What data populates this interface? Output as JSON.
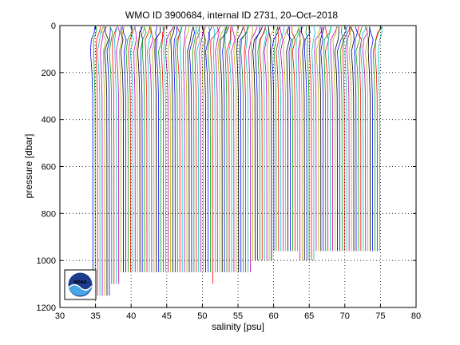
{
  "chart_data": {
    "type": "line",
    "title": "WMO ID 3900684, internal ID 2731, 20–Oct–2018",
    "xlabel": "salinity [psu]",
    "ylabel": "pressure [dbar]",
    "xlim": [
      30,
      80
    ],
    "ylim": [
      0,
      1200
    ],
    "y_reversed": true,
    "grid": true,
    "x_ticks": [
      "30",
      "35",
      "40",
      "45",
      "50",
      "55",
      "60",
      "65",
      "70",
      "75",
      "80"
    ],
    "y_ticks": [
      "0",
      "200",
      "400",
      "600",
      "800",
      "1000",
      "1200"
    ],
    "profiles": {
      "description_visible": "many offset salinity profiles (waterfall)",
      "offset_start_psu": 34.6,
      "offset_end_psu": 75.0,
      "offset_step_psu": 0.33,
      "surface_pressure_dbar": 5,
      "typical_bottom_dbar": [
        1150,
        1150,
        1150,
        1150,
        1150,
        1150,
        1150,
        1150,
        1100,
        1100,
        1100,
        1100,
        1050,
        1050,
        1050,
        1050,
        1050,
        1050,
        1050,
        1050,
        1050,
        1050,
        1050,
        1050,
        1050,
        1050,
        1050,
        1050,
        1050,
        1050,
        1050,
        1050,
        1050,
        1050,
        1050,
        1050,
        1050,
        1050,
        1050,
        1050,
        1050,
        1050,
        1050,
        1050,
        1050,
        1050,
        1050,
        1050,
        1050,
        1050,
        1050,
        1100,
        1050,
        1050,
        1050,
        1050,
        1050,
        1050,
        1050,
        1050,
        1050,
        1050,
        1050,
        1050,
        1050,
        1050,
        1050,
        1050,
        1000,
        1000,
        1000,
        1000,
        1000,
        1000,
        1000,
        1000,
        1000,
        960,
        960,
        960,
        960,
        960,
        960,
        960,
        960,
        960,
        960,
        960,
        1000,
        1000,
        1000,
        1000,
        1000,
        1000,
        1000,
        960,
        960,
        960,
        960,
        960,
        960,
        960,
        960,
        960,
        960,
        960,
        960,
        960,
        960,
        960,
        960,
        960,
        960,
        960,
        960,
        960,
        960,
        960,
        960,
        960,
        960,
        960,
        960,
        960
      ],
      "colors": [
        "#0000ff",
        "#00a000",
        "#ff0000",
        "#00c0c0",
        "#c000c0",
        "#b0b000",
        "#000000"
      ]
    }
  },
  "logo": {
    "text": "NOAA"
  }
}
